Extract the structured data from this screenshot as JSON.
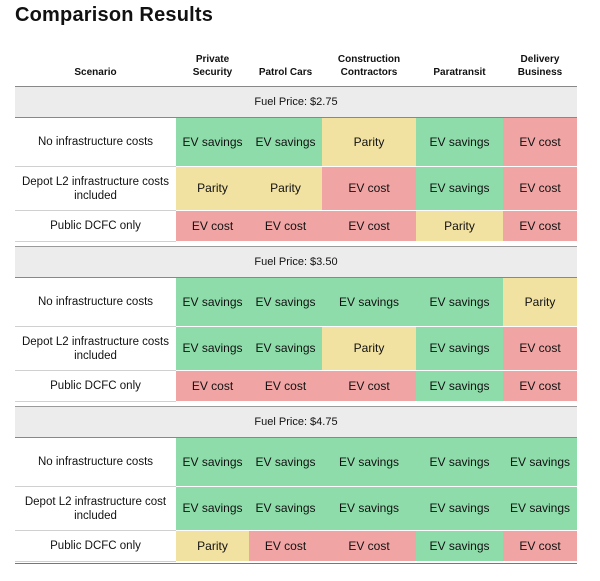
{
  "title": "Comparison Results",
  "columns": [
    "Scenario",
    "Private Security",
    "Patrol Cars",
    "Construction Contractors",
    "Paratransit",
    "Delivery Business"
  ],
  "colors": {
    "EV savings": "#8fdcab",
    "Parity": "#f2e2a2",
    "EV cost": "#f0a4a4"
  },
  "groups": [
    {
      "label": "Fuel Price: $2.75",
      "rows": [
        {
          "scenario": "No infrastructure costs",
          "cells": [
            "EV savings",
            "EV savings",
            "Parity",
            "EV savings",
            "EV cost"
          ]
        },
        {
          "scenario": "Depot L2 infrastructure costs included",
          "cells": [
            "Parity",
            "Parity",
            "EV cost",
            "EV savings",
            "EV cost"
          ]
        },
        {
          "scenario": "Public DCFC only",
          "cells": [
            "EV cost",
            "EV cost",
            "EV cost",
            "Parity",
            "EV cost"
          ]
        }
      ]
    },
    {
      "label": "Fuel Price: $3.50",
      "rows": [
        {
          "scenario": "No infrastructure costs",
          "cells": [
            "EV savings",
            "EV savings",
            "EV savings",
            "EV savings",
            "Parity"
          ]
        },
        {
          "scenario": "Depot L2 infrastructure costs included",
          "cells": [
            "EV savings",
            "EV savings",
            "Parity",
            "EV savings",
            "EV cost"
          ]
        },
        {
          "scenario": "Public DCFC only",
          "cells": [
            "EV cost",
            "EV cost",
            "EV cost",
            "EV savings",
            "EV cost"
          ]
        }
      ]
    },
    {
      "label": "Fuel Price: $4.75",
      "rows": [
        {
          "scenario": "No infrastructure costs",
          "cells": [
            "EV savings",
            "EV savings",
            "EV savings",
            "EV savings",
            "EV savings"
          ]
        },
        {
          "scenario": "Depot L2 infrastructure cost included",
          "cells": [
            "EV savings",
            "EV savings",
            "EV savings",
            "EV savings",
            "EV savings"
          ]
        },
        {
          "scenario": "Public DCFC only",
          "cells": [
            "Parity",
            "EV cost",
            "EV cost",
            "EV savings",
            "EV cost"
          ]
        }
      ]
    }
  ]
}
